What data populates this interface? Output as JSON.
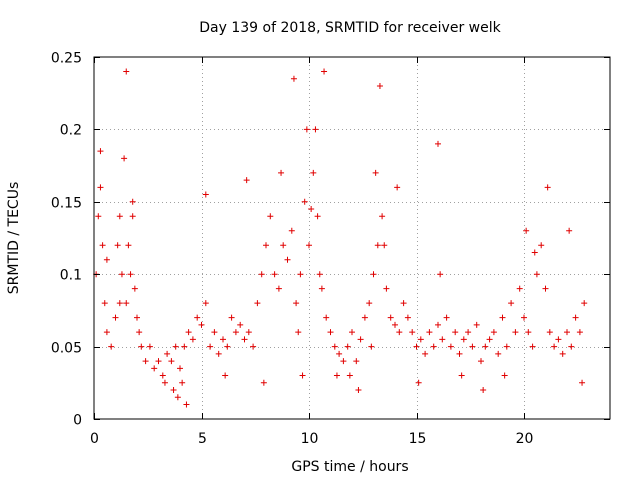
{
  "chart_data": {
    "type": "scatter",
    "title": "Day 139 of 2018, SRMTID for receiver welk",
    "xlabel": "GPS time / hours",
    "ylabel": "SRMTID / TECUs",
    "xlim": [
      0,
      24
    ],
    "ylim": [
      0,
      0.25
    ],
    "x_ticks": [
      "0",
      "5",
      "10",
      "15",
      "20"
    ],
    "y_ticks": [
      "0",
      "0.05",
      "0.1",
      "0.15",
      "0.2",
      "0.25"
    ],
    "grid": true,
    "marker": "+",
    "color": "#e00000",
    "x": [
      0.1,
      0.2,
      0.3,
      0.4,
      0.5,
      0.6,
      0.8,
      1.0,
      1.1,
      1.2,
      1.3,
      1.4,
      1.5,
      1.6,
      1.7,
      1.8,
      1.9,
      2.0,
      2.1,
      2.2,
      2.4,
      2.6,
      2.8,
      3.0,
      3.2,
      3.4,
      3.6,
      3.8,
      4.0,
      4.2,
      4.4,
      4.6,
      4.8,
      5.0,
      5.2,
      5.4,
      5.6,
      5.8,
      6.0,
      6.2,
      6.4,
      6.6,
      6.8,
      7.0,
      7.2,
      7.4,
      7.6,
      7.8,
      8.0,
      8.2,
      8.4,
      8.6,
      8.8,
      9.0,
      9.2,
      9.4,
      9.5,
      9.6,
      9.8,
      10.0,
      10.2,
      10.4,
      10.5,
      10.6,
      10.8,
      11.0,
      11.2,
      11.4,
      11.6,
      11.8,
      12.0,
      12.2,
      12.4,
      12.6,
      12.8,
      13.0,
      13.2,
      13.4,
      13.6,
      13.8,
      14.0,
      14.2,
      14.4,
      14.6,
      14.8,
      15.0,
      15.2,
      15.4,
      15.6,
      15.8,
      16.0,
      16.2,
      16.4,
      16.6,
      16.8,
      17.0,
      17.2,
      17.4,
      17.6,
      17.8,
      18.0,
      18.2,
      18.4,
      18.6,
      18.8,
      19.0,
      19.2,
      19.4,
      19.6,
      19.8,
      20.0,
      20.2,
      20.4,
      20.6,
      20.8,
      21.0,
      21.2,
      21.4,
      21.6,
      21.8,
      22.0,
      22.2,
      22.4,
      22.6,
      22.8,
      0.3,
      0.6,
      1.2,
      1.5,
      1.8,
      3.3,
      3.7,
      4.3,
      5.2,
      6.1,
      7.1,
      7.9,
      8.7,
      9.3,
      9.7,
      10.3,
      10.7,
      11.3,
      12.3,
      13.1,
      13.3,
      13.5,
      14.1,
      15.1,
      16.0,
      16.1,
      17.1,
      18.1,
      19.1,
      20.1,
      20.5,
      21.1,
      22.1,
      22.7,
      9.9,
      10.1,
      4.1,
      3.9,
      11.9,
      12.9
    ],
    "y": [
      0.1,
      0.14,
      0.16,
      0.12,
      0.08,
      0.06,
      0.05,
      0.07,
      0.12,
      0.14,
      0.1,
      0.18,
      0.08,
      0.12,
      0.1,
      0.15,
      0.09,
      0.07,
      0.06,
      0.05,
      0.04,
      0.05,
      0.035,
      0.04,
      0.03,
      0.045,
      0.04,
      0.05,
      0.035,
      0.05,
      0.06,
      0.055,
      0.07,
      0.065,
      0.08,
      0.05,
      0.06,
      0.045,
      0.055,
      0.05,
      0.07,
      0.06,
      0.065,
      0.055,
      0.06,
      0.05,
      0.08,
      0.1,
      0.12,
      0.14,
      0.1,
      0.09,
      0.12,
      0.11,
      0.13,
      0.08,
      0.06,
      0.1,
      0.15,
      0.12,
      0.17,
      0.14,
      0.1,
      0.09,
      0.07,
      0.06,
      0.05,
      0.045,
      0.04,
      0.05,
      0.06,
      0.04,
      0.055,
      0.07,
      0.08,
      0.1,
      0.12,
      0.14,
      0.09,
      0.07,
      0.065,
      0.06,
      0.08,
      0.07,
      0.06,
      0.05,
      0.055,
      0.045,
      0.06,
      0.05,
      0.065,
      0.055,
      0.07,
      0.05,
      0.06,
      0.045,
      0.055,
      0.06,
      0.05,
      0.065,
      0.04,
      0.05,
      0.055,
      0.06,
      0.045,
      0.07,
      0.05,
      0.08,
      0.06,
      0.09,
      0.07,
      0.06,
      0.05,
      0.1,
      0.12,
      0.09,
      0.06,
      0.05,
      0.055,
      0.045,
      0.06,
      0.05,
      0.07,
      0.06,
      0.08,
      0.185,
      0.11,
      0.08,
      0.24,
      0.14,
      0.025,
      0.02,
      0.01,
      0.155,
      0.03,
      0.165,
      0.025,
      0.17,
      0.235,
      0.03,
      0.2,
      0.24,
      0.03,
      0.02,
      0.17,
      0.23,
      0.12,
      0.16,
      0.025,
      0.19,
      0.1,
      0.03,
      0.02,
      0.03,
      0.13,
      0.115,
      0.16,
      0.13,
      0.025,
      0.2,
      0.145,
      0.025,
      0.015,
      0.03,
      0.05
    ]
  }
}
